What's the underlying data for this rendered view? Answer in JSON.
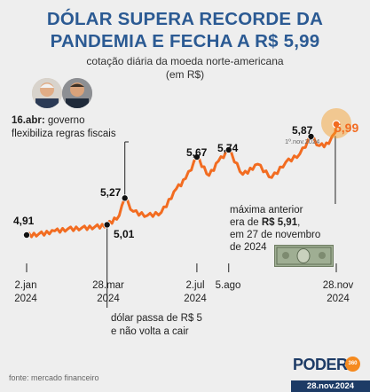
{
  "header": {
    "title_line1": "DÓLAR SUPERA RECORDE DA",
    "title_line2": "PANDEMIA E FECHA A R$ 5,99",
    "subtitle_line1": "cotação diária da moeda norte-americana",
    "subtitle_line2": "(em R$)"
  },
  "annotations": {
    "april_date": "16.abr:",
    "april_text1": " governo",
    "april_text2": "flexibiliza regras fiscais",
    "march_text1": "dólar passa de R$ 5",
    "march_text2": "e não volta a cair",
    "prev_max1": "máxima anterior",
    "prev_max2_pre": "era de ",
    "prev_max2_bold": "R$ 5,91",
    "prev_max2_post": ",",
    "prev_max3": "em 27 de novembro",
    "prev_max4": "de 2024",
    "nov1_label": "1º.nov.2024"
  },
  "value_labels": {
    "v_start": "4,91",
    "v_apr": "5,27",
    "v_mar": "5,01",
    "v_jul": "5,67",
    "v_aug": "5,74",
    "v_nov1": "5,87",
    "v_last": "5,99"
  },
  "x_ticks": {
    "t1_a": "2.jan",
    "t1_b": "2024",
    "t2_a": "28.mar",
    "t2_b": "2024",
    "t3_a": "2.jul",
    "t3_b": "2024",
    "t4_a": "5.ago",
    "t5_a": "28.nov",
    "t5_b": "2024"
  },
  "footer": {
    "source": "fonte: mercado financeiro",
    "logo": "PODER",
    "logo_num": "360",
    "date": "28.nov.2024"
  },
  "colors": {
    "line": "#f26c21",
    "title": "#2b5a93",
    "highlight": "#f59a1f",
    "background": "#eeeeee"
  },
  "chart_data": {
    "type": "line",
    "x": [
      "2024-01-02",
      "2024-01-15",
      "2024-02-01",
      "2024-02-15",
      "2024-03-01",
      "2024-03-15",
      "2024-03-28",
      "2024-04-10",
      "2024-04-16",
      "2024-04-25",
      "2024-05-10",
      "2024-05-25",
      "2024-06-10",
      "2024-06-20",
      "2024-07-02",
      "2024-07-15",
      "2024-07-25",
      "2024-08-05",
      "2024-08-20",
      "2024-09-05",
      "2024-09-20",
      "2024-10-05",
      "2024-10-20",
      "2024-11-01",
      "2024-11-10",
      "2024-11-20",
      "2024-11-27",
      "2024-11-28"
    ],
    "values": [
      4.91,
      4.92,
      4.95,
      4.97,
      4.98,
      4.99,
      5.01,
      5.1,
      5.27,
      5.14,
      5.1,
      5.13,
      5.36,
      5.46,
      5.67,
      5.49,
      5.63,
      5.74,
      5.5,
      5.6,
      5.47,
      5.62,
      5.7,
      5.87,
      5.78,
      5.8,
      5.91,
      5.99
    ],
    "highlighted_points": [
      {
        "x": "2024-01-02",
        "y": 4.91
      },
      {
        "x": "2024-03-28",
        "y": 5.01
      },
      {
        "x": "2024-04-16",
        "y": 5.27
      },
      {
        "x": "2024-07-02",
        "y": 5.67
      },
      {
        "x": "2024-08-05",
        "y": 5.74
      },
      {
        "x": "2024-11-01",
        "y": 5.87
      },
      {
        "x": "2024-11-28",
        "y": 5.99
      }
    ],
    "x_tick_labels": [
      "2.jan 2024",
      "28.mar 2024",
      "2.jul 2024",
      "5.ago",
      "28.nov 2024"
    ]
  }
}
